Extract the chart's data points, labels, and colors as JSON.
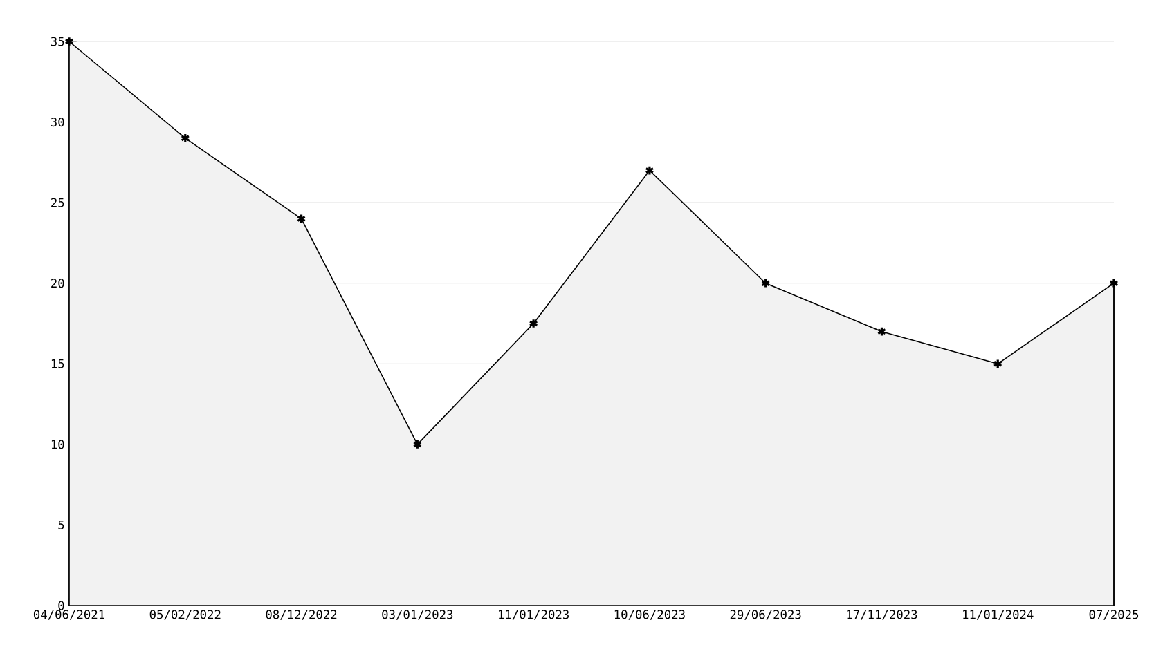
{
  "chart_data": {
    "type": "area",
    "categories": [
      "04/06/2021",
      "05/02/2022",
      "08/12/2022",
      "03/01/2023",
      "11/01/2023",
      "10/06/2023",
      "29/06/2023",
      "17/11/2023",
      "11/01/2024",
      "07/2025"
    ],
    "values": [
      35,
      29,
      24,
      10,
      17.5,
      27,
      20,
      17,
      15,
      20
    ],
    "color": "#000000",
    "ylim": [
      0,
      35
    ],
    "yticks": [
      0,
      5,
      10,
      15,
      20,
      25,
      30,
      35
    ],
    "grid": "y",
    "marker": "cross",
    "line_style": "solid"
  }
}
